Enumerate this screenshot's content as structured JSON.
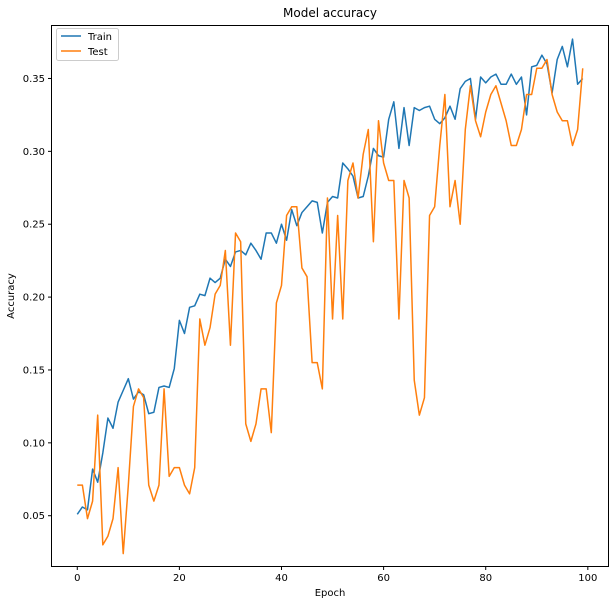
{
  "chart_data": {
    "type": "line",
    "title": "Model accuracy",
    "xlabel": "Epoch",
    "ylabel": "Accuracy",
    "xlim": [
      -4.95,
      103.95
    ],
    "ylim": [
      0.0155,
      0.386
    ],
    "xticks": [
      0,
      20,
      40,
      60,
      80,
      100
    ],
    "yticks": [
      0.05,
      0.1,
      0.15,
      0.2,
      0.25,
      0.3,
      0.35
    ],
    "ytick_labels": [
      "0.05",
      "0.10",
      "0.15",
      "0.20",
      "0.25",
      "0.30",
      "0.35"
    ],
    "grid": false,
    "legend_position": "upper-left",
    "series": [
      {
        "name": "Train",
        "color": "#1f77b4",
        "values": [
          0.051,
          0.056,
          0.054,
          0.082,
          0.073,
          0.093,
          0.117,
          0.11,
          0.128,
          0.136,
          0.144,
          0.13,
          0.135,
          0.133,
          0.12,
          0.121,
          0.138,
          0.139,
          0.138,
          0.151,
          0.184,
          0.175,
          0.193,
          0.194,
          0.202,
          0.201,
          0.213,
          0.21,
          0.213,
          0.226,
          0.221,
          0.231,
          0.232,
          0.229,
          0.237,
          0.232,
          0.226,
          0.244,
          0.244,
          0.237,
          0.25,
          0.239,
          0.26,
          0.249,
          0.258,
          0.262,
          0.266,
          0.265,
          0.244,
          0.265,
          0.269,
          0.268,
          0.292,
          0.288,
          0.283,
          0.268,
          0.269,
          0.283,
          0.302,
          0.297,
          0.296,
          0.322,
          0.334,
          0.302,
          0.33,
          0.304,
          0.33,
          0.328,
          0.33,
          0.331,
          0.322,
          0.319,
          0.323,
          0.331,
          0.322,
          0.343,
          0.348,
          0.35,
          0.322,
          0.351,
          0.347,
          0.351,
          0.353,
          0.346,
          0.346,
          0.353,
          0.346,
          0.351,
          0.325,
          0.358,
          0.359,
          0.366,
          0.36,
          0.34,
          0.363,
          0.372,
          0.358,
          0.377,
          0.346,
          0.35
        ]
      },
      {
        "name": "Test",
        "color": "#ff7f0e",
        "values": [
          0.071,
          0.071,
          0.048,
          0.06,
          0.119,
          0.03,
          0.036,
          0.048,
          0.083,
          0.024,
          0.071,
          0.125,
          0.137,
          0.131,
          0.071,
          0.06,
          0.071,
          0.137,
          0.077,
          0.083,
          0.083,
          0.071,
          0.065,
          0.083,
          0.185,
          0.167,
          0.179,
          0.202,
          0.208,
          0.232,
          0.167,
          0.244,
          0.238,
          0.113,
          0.101,
          0.113,
          0.137,
          0.137,
          0.107,
          0.196,
          0.208,
          0.256,
          0.262,
          0.262,
          0.22,
          0.214,
          0.155,
          0.155,
          0.137,
          0.268,
          0.185,
          0.256,
          0.185,
          0.28,
          0.292,
          0.268,
          0.298,
          0.315,
          0.238,
          0.321,
          0.292,
          0.28,
          0.28,
          0.185,
          0.28,
          0.268,
          0.143,
          0.119,
          0.131,
          0.256,
          0.262,
          0.304,
          0.339,
          0.262,
          0.28,
          0.25,
          0.315,
          0.345,
          0.321,
          0.31,
          0.327,
          0.339,
          0.345,
          0.333,
          0.321,
          0.304,
          0.304,
          0.315,
          0.339,
          0.339,
          0.357,
          0.357,
          0.363,
          0.339,
          0.327,
          0.321,
          0.321,
          0.304,
          0.315,
          0.357
        ]
      }
    ]
  }
}
